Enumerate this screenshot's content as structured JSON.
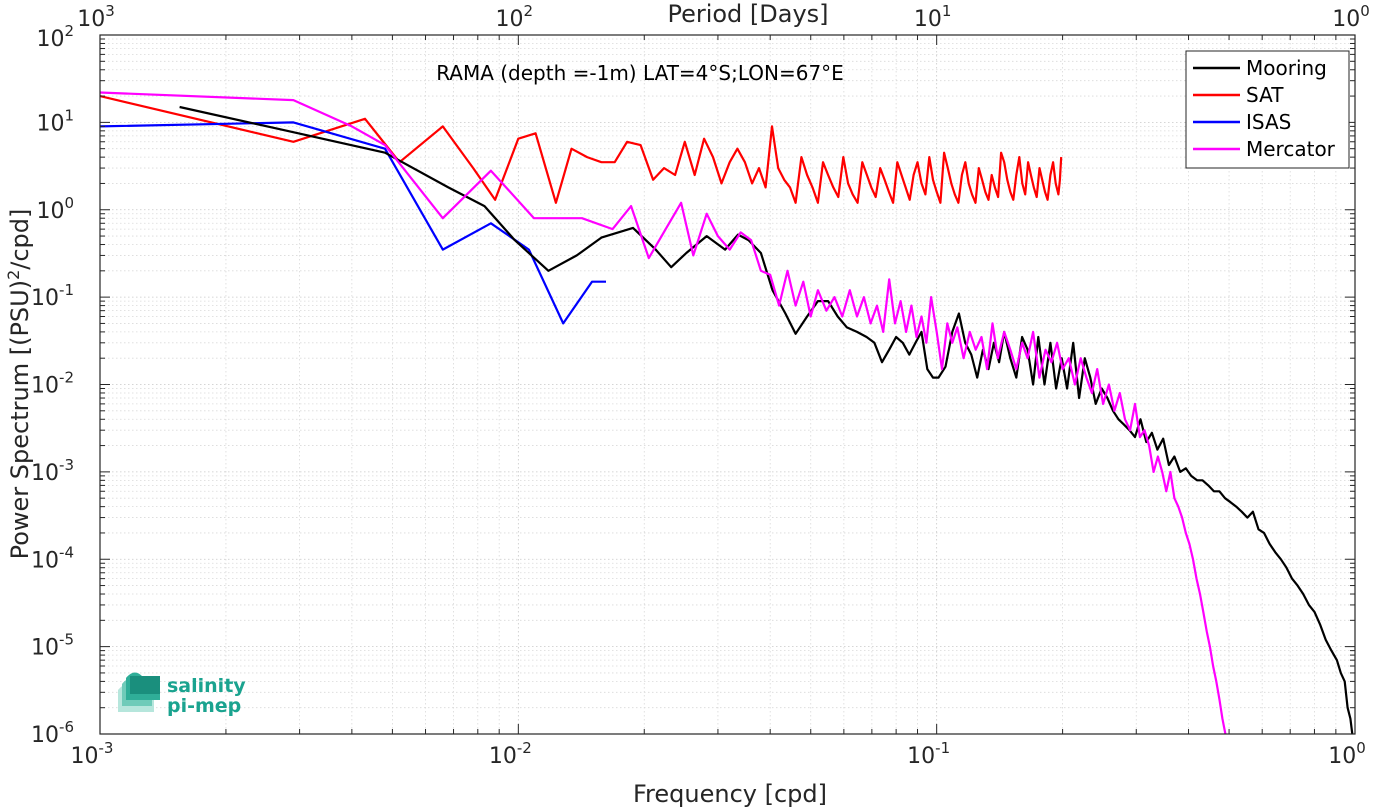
{
  "chart_data": {
    "type": "line",
    "title": "",
    "annotation": "RAMA (depth =-1m) LAT=4°S;LON=67°E",
    "xlabel": "Frequency [cpd]",
    "ylabel_main": "Power Spectrum [(PSU)",
    "ylabel_sup": "2",
    "ylabel_tail": "/cpd]",
    "top_xlabel": "Period [Days]",
    "x_scale": "log",
    "y_scale": "log",
    "xlim": [
      0.001,
      1
    ],
    "ylim": [
      1e-06,
      100
    ],
    "grid": true,
    "legend_position": "top-right",
    "x_ticks": [
      {
        "value": 0.001,
        "base": "10",
        "exp": "-3"
      },
      {
        "value": 0.01,
        "base": "10",
        "exp": "-2"
      },
      {
        "value": 0.1,
        "base": "10",
        "exp": "-1"
      },
      {
        "value": 1,
        "base": "10",
        "exp": "0"
      }
    ],
    "top_ticks": [
      {
        "value": 0.001,
        "base": "10",
        "exp": "3"
      },
      {
        "value": 0.01,
        "base": "10",
        "exp": "2"
      },
      {
        "value": 0.1,
        "base": "10",
        "exp": "1"
      },
      {
        "value": 1,
        "base": "10",
        "exp": "0"
      }
    ],
    "y_ticks": [
      {
        "value": 1e-06,
        "base": "10",
        "exp": "-6"
      },
      {
        "value": 1e-05,
        "base": "10",
        "exp": "-5"
      },
      {
        "value": 0.0001,
        "base": "10",
        "exp": "-4"
      },
      {
        "value": 0.001,
        "base": "10",
        "exp": "-3"
      },
      {
        "value": 0.01,
        "base": "10",
        "exp": "-2"
      },
      {
        "value": 0.1,
        "base": "10",
        "exp": "-1"
      },
      {
        "value": 1,
        "base": "10",
        "exp": "0"
      },
      {
        "value": 10,
        "base": "10",
        "exp": "1"
      },
      {
        "value": 100,
        "base": "10",
        "exp": "2"
      }
    ],
    "series": [
      {
        "name": "Mooring",
        "color": "#000000",
        "x": [
          0.00155,
          0.0028,
          0.0048,
          0.0068,
          0.0083,
          0.0098,
          0.0118,
          0.0138,
          0.0158,
          0.0188,
          0.0213,
          0.0232,
          0.0252,
          0.0282,
          0.0312,
          0.0335,
          0.0355,
          0.038,
          0.0405,
          0.0435,
          0.046,
          0.049,
          0.052,
          0.055,
          0.058,
          0.061,
          0.0645,
          0.068,
          0.071,
          0.074,
          0.077,
          0.08,
          0.083,
          0.086,
          0.089,
          0.092,
          0.095,
          0.098,
          0.101,
          0.105,
          0.109,
          0.113,
          0.117,
          0.121,
          0.125,
          0.129,
          0.133,
          0.137,
          0.141,
          0.145,
          0.15,
          0.155,
          0.16,
          0.165,
          0.17,
          0.175,
          0.181,
          0.187,
          0.193,
          0.199,
          0.205,
          0.212,
          0.219,
          0.226,
          0.233,
          0.24,
          0.248,
          0.256,
          0.264,
          0.272,
          0.28,
          0.289,
          0.298,
          0.307,
          0.317,
          0.327,
          0.337,
          0.348,
          0.359,
          0.37,
          0.382,
          0.394,
          0.406,
          0.419,
          0.432,
          0.446,
          0.46,
          0.474,
          0.489,
          0.504,
          0.52,
          0.536,
          0.553,
          0.57,
          0.588,
          0.606,
          0.625,
          0.645,
          0.665,
          0.686,
          0.707,
          0.729,
          0.752,
          0.776,
          0.8,
          0.825,
          0.851,
          0.878,
          0.905,
          0.925,
          0.945,
          0.96,
          0.975,
          0.985
        ],
        "y": [
          15,
          8,
          4.5,
          1.8,
          1.1,
          0.45,
          0.2,
          0.3,
          0.48,
          0.62,
          0.35,
          0.22,
          0.32,
          0.5,
          0.35,
          0.52,
          0.45,
          0.32,
          0.12,
          0.065,
          0.038,
          0.06,
          0.09,
          0.09,
          0.06,
          0.045,
          0.04,
          0.035,
          0.03,
          0.018,
          0.025,
          0.035,
          0.03,
          0.022,
          0.03,
          0.04,
          0.015,
          0.012,
          0.012,
          0.016,
          0.04,
          0.065,
          0.03,
          0.022,
          0.012,
          0.025,
          0.015,
          0.03,
          0.018,
          0.04,
          0.02,
          0.012,
          0.035,
          0.025,
          0.01,
          0.035,
          0.01,
          0.03,
          0.009,
          0.02,
          0.009,
          0.03,
          0.007,
          0.02,
          0.012,
          0.006,
          0.009,
          0.007,
          0.005,
          0.004,
          0.0035,
          0.003,
          0.0025,
          0.004,
          0.0022,
          0.0028,
          0.0018,
          0.0024,
          0.0012,
          0.0015,
          0.001,
          0.0011,
          0.0009,
          0.0008,
          0.0008,
          0.0007,
          0.0006,
          0.0006,
          0.0005,
          0.00045,
          0.0004,
          0.00035,
          0.0003,
          0.00035,
          0.00022,
          0.0002,
          0.00015,
          0.00012,
          0.0001,
          8e-05,
          6e-05,
          5e-05,
          4e-05,
          3e-05,
          2.5e-05,
          1.8e-05,
          1.2e-05,
          9e-06,
          7e-06,
          5e-06,
          4e-06,
          2e-06,
          1.5e-06,
          1e-06
        ]
      },
      {
        "name": "SAT",
        "color": "#ff0000",
        "x": [
          0.001,
          0.0029,
          0.0043,
          0.0052,
          0.0066,
          0.0078,
          0.0088,
          0.01,
          0.011,
          0.0123,
          0.0134,
          0.0146,
          0.0158,
          0.017,
          0.0182,
          0.0196,
          0.021,
          0.0223,
          0.0237,
          0.025,
          0.0264,
          0.0278,
          0.0292,
          0.0306,
          0.032,
          0.0334,
          0.0348,
          0.0362,
          0.0376,
          0.039,
          0.0404,
          0.0418,
          0.0432,
          0.0446,
          0.046,
          0.0475,
          0.049,
          0.0505,
          0.052,
          0.0535,
          0.055,
          0.0566,
          0.0582,
          0.0598,
          0.0614,
          0.063,
          0.0647,
          0.0664,
          0.0681,
          0.0698,
          0.0715,
          0.0733,
          0.0751,
          0.0769,
          0.0787,
          0.0805,
          0.0824,
          0.0843,
          0.0862,
          0.0881,
          0.09,
          0.092,
          0.094,
          0.096,
          0.098,
          0.1,
          0.1021,
          0.1042,
          0.1063,
          0.1084,
          0.1105,
          0.1127,
          0.1149,
          0.1171,
          0.1193,
          0.1215,
          0.1238,
          0.1261,
          0.1284,
          0.1307,
          0.133,
          0.1354,
          0.1378,
          0.1402,
          0.1426,
          0.145,
          0.1475,
          0.15,
          0.1525,
          0.155,
          0.1576,
          0.1602,
          0.1628,
          0.1654,
          0.168,
          0.1707,
          0.1734,
          0.1761,
          0.1788,
          0.1815,
          0.1842,
          0.187,
          0.1898,
          0.1926,
          0.1954,
          0.197,
          0.1985
        ],
        "y": [
          20,
          6,
          11,
          3.5,
          9,
          3,
          1.3,
          6.5,
          7.5,
          1.2,
          5,
          4,
          3.5,
          3.5,
          6,
          5.5,
          2.2,
          3,
          2.5,
          6,
          2.5,
          6.5,
          4,
          2,
          3.5,
          5,
          3.5,
          2,
          3,
          1.8,
          9,
          3,
          2.2,
          1.8,
          1.2,
          4,
          2.5,
          1.8,
          1.2,
          3.5,
          2.5,
          1.8,
          1.4,
          4,
          2,
          1.5,
          1.2,
          3.5,
          2.5,
          1.8,
          1.4,
          3,
          2.2,
          1.6,
          1.2,
          3.5,
          2.5,
          1.8,
          1.3,
          2.5,
          3.5,
          2,
          1.5,
          4,
          2.2,
          1.6,
          1.2,
          4.5,
          3,
          2,
          1.5,
          1.2,
          2.5,
          3.5,
          2,
          1.5,
          1.2,
          3,
          2.2,
          1.6,
          1.3,
          2.5,
          1.8,
          1.4,
          4.5,
          3.5,
          2.2,
          1.6,
          1.3,
          2.5,
          4,
          2,
          1.5,
          3.5,
          2.5,
          1.8,
          1.4,
          3,
          2.2,
          1.6,
          1.3,
          2.5,
          3.5,
          2,
          1.5,
          2.2,
          4
        ]
      },
      {
        "name": "ISAS",
        "color": "#0000ff",
        "x": [
          0.001,
          0.0029,
          0.0048,
          0.0066,
          0.0086,
          0.0106,
          0.0128,
          0.015,
          0.0162
        ],
        "y": [
          9,
          10,
          5,
          0.35,
          0.7,
          0.35,
          0.05,
          0.15,
          0.15
        ]
      },
      {
        "name": "Mercator",
        "color": "#ff00ff",
        "x": [
          0.001,
          0.0029,
          0.004,
          0.0048,
          0.0066,
          0.0086,
          0.0109,
          0.0142,
          0.0168,
          0.0186,
          0.0205,
          0.0225,
          0.0245,
          0.0262,
          0.0282,
          0.03,
          0.032,
          0.034,
          0.036,
          0.038,
          0.04,
          0.042,
          0.044,
          0.046,
          0.048,
          0.05,
          0.052,
          0.0545,
          0.057,
          0.0595,
          0.062,
          0.0645,
          0.067,
          0.0695,
          0.072,
          0.0745,
          0.077,
          0.0795,
          0.082,
          0.0845,
          0.087,
          0.0895,
          0.092,
          0.0945,
          0.097,
          0.1,
          0.103,
          0.106,
          0.109,
          0.112,
          0.116,
          0.12,
          0.124,
          0.128,
          0.132,
          0.136,
          0.14,
          0.145,
          0.15,
          0.155,
          0.16,
          0.165,
          0.17,
          0.176,
          0.182,
          0.188,
          0.194,
          0.2,
          0.207,
          0.214,
          0.221,
          0.228,
          0.235,
          0.242,
          0.25,
          0.258,
          0.266,
          0.274,
          0.282,
          0.29,
          0.298,
          0.306,
          0.314,
          0.322,
          0.33,
          0.338,
          0.346,
          0.354,
          0.362,
          0.37,
          0.378,
          0.386,
          0.394,
          0.402,
          0.41,
          0.418,
          0.426,
          0.434,
          0.442,
          0.45,
          0.458,
          0.466,
          0.474,
          0.482,
          0.49
        ],
        "y": [
          22,
          18,
          9,
          5.5,
          0.8,
          2.8,
          0.8,
          0.8,
          0.6,
          1.1,
          0.28,
          0.6,
          1.2,
          0.3,
          0.9,
          0.5,
          0.35,
          0.55,
          0.45,
          0.2,
          0.18,
          0.08,
          0.2,
          0.08,
          0.15,
          0.06,
          0.12,
          0.07,
          0.1,
          0.06,
          0.12,
          0.06,
          0.1,
          0.05,
          0.08,
          0.04,
          0.16,
          0.05,
          0.09,
          0.04,
          0.08,
          0.035,
          0.06,
          0.03,
          0.1,
          0.04,
          0.015,
          0.05,
          0.03,
          0.045,
          0.02,
          0.04,
          0.025,
          0.035,
          0.015,
          0.05,
          0.02,
          0.04,
          0.025,
          0.015,
          0.03,
          0.02,
          0.04,
          0.012,
          0.025,
          0.018,
          0.03,
          0.015,
          0.02,
          0.01,
          0.02,
          0.012,
          0.008,
          0.015,
          0.006,
          0.01,
          0.005,
          0.008,
          0.004,
          0.003,
          0.006,
          0.0025,
          0.003,
          0.002,
          0.001,
          0.0015,
          0.001,
          0.0006,
          0.001,
          0.0005,
          0.0004,
          0.0003,
          0.0002,
          0.00015,
          0.0001,
          6e-05,
          4e-05,
          2.5e-05,
          1.5e-05,
          1e-05,
          6e-06,
          4e-06,
          2.5e-06,
          1.5e-06,
          1e-06
        ]
      }
    ]
  },
  "logo": {
    "line1": "salinity",
    "line2": "pi-mep",
    "color": "#1aa38f"
  }
}
